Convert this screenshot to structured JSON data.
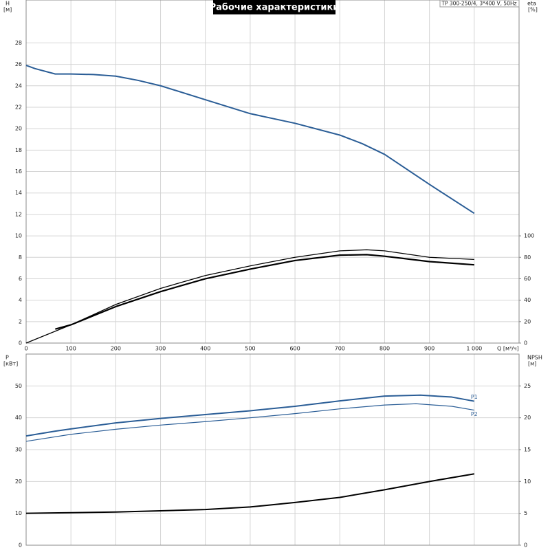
{
  "legend_text": "TP 300-250/4, 3*400 V, 50Hz",
  "chart_data": [
    {
      "type": "line",
      "title": "Рабочие характеристики",
      "y_label": "H",
      "y_unit": "[м]",
      "y2_label": "eta",
      "y2_unit": "[%]",
      "x_label": "Q [м³/ч]",
      "xlim": [
        0,
        1100
      ],
      "xticks": [
        0,
        100,
        200,
        300,
        400,
        500,
        600,
        700,
        800,
        900,
        {
          "value": 1000,
          "label": "1 000"
        }
      ],
      "ylim": [
        0,
        32
      ],
      "yticks": [
        0,
        2,
        4,
        6,
        8,
        10,
        12,
        14,
        16,
        18,
        20,
        22,
        24,
        26,
        28
      ],
      "y2lim": [
        0,
        320
      ],
      "y2ticks": [
        0,
        20,
        40,
        60,
        80,
        100
      ],
      "grid": true,
      "series": [
        {
          "color": "#2a5d96",
          "line_width": 2,
          "x": [
            0,
            20,
            65,
            100,
            150,
            200,
            250,
            300,
            400,
            500,
            600,
            700,
            750,
            800,
            900,
            1000
          ],
          "values": [
            25.9,
            25.6,
            25.1,
            25.1,
            25.05,
            24.9,
            24.5,
            24.0,
            22.7,
            21.4,
            20.5,
            19.4,
            18.6,
            17.6,
            14.8,
            12.1
          ]
        },
        {
          "color": "#000000",
          "line_width": 1.3,
          "axis": "y2",
          "x": [
            0,
            100,
            200,
            300,
            400,
            500,
            600,
            700,
            760,
            800,
            900,
            1000
          ],
          "values": [
            0,
            17,
            36,
            51,
            63,
            72,
            80,
            86,
            87,
            86,
            80,
            78
          ]
        },
        {
          "color": "#000000",
          "line_width": 2.2,
          "axis": "y2",
          "x": [
            65,
            100,
            200,
            300,
            400,
            500,
            600,
            700,
            760,
            800,
            900,
            1000
          ],
          "values": [
            13,
            17,
            34,
            48,
            60,
            69,
            77,
            82,
            82.5,
            81,
            76,
            73
          ]
        }
      ]
    },
    {
      "type": "line",
      "y_label": "P",
      "y_unit": "[кВт]",
      "y2_label": "NPSH",
      "y2_unit": "[м]",
      "xlim": [
        0,
        1100
      ],
      "xticks": [
        0,
        100,
        200,
        300,
        400,
        500,
        600,
        700,
        800,
        900,
        1000
      ],
      "ylim": [
        0,
        60
      ],
      "yticks": [
        0,
        10,
        20,
        30,
        40,
        50
      ],
      "y2lim": [
        0,
        30
      ],
      "y2ticks": [
        0,
        5,
        10,
        15,
        20,
        25
      ],
      "grid": true,
      "series": [
        {
          "name": "P1",
          "color": "#2a5d96",
          "line_width": 2,
          "x": [
            0,
            65,
            100,
            200,
            300,
            400,
            500,
            600,
            700,
            800,
            880,
            950,
            1000
          ],
          "values": [
            34.3,
            35.8,
            36.5,
            38.4,
            39.8,
            41,
            42.2,
            43.6,
            45.3,
            46.8,
            47.1,
            46.5,
            45.2
          ]
        },
        {
          "name": "P2",
          "color": "#2a5d96",
          "line_width": 1.2,
          "x": [
            0,
            100,
            200,
            300,
            400,
            500,
            600,
            700,
            800,
            870,
            950,
            1000
          ],
          "values": [
            32.6,
            34.8,
            36.4,
            37.7,
            38.8,
            40,
            41.3,
            42.8,
            44,
            44.4,
            43.6,
            42.4
          ]
        },
        {
          "color": "#000000",
          "line_width": 2,
          "axis": "y2",
          "x": [
            0,
            100,
            200,
            300,
            400,
            500,
            600,
            700,
            800,
            900,
            1000
          ],
          "values": [
            5.0,
            5.1,
            5.2,
            5.4,
            5.6,
            6.0,
            6.7,
            7.5,
            8.7,
            10.0,
            11.2
          ]
        }
      ]
    }
  ]
}
